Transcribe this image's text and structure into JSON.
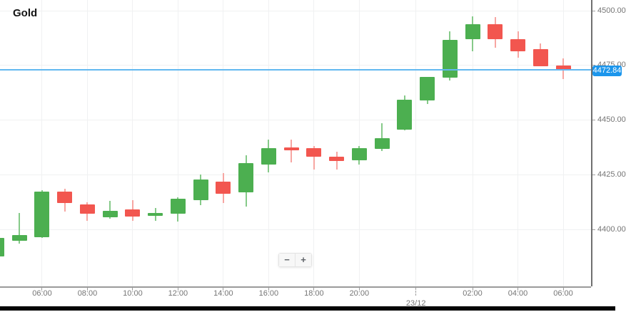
{
  "title": "Gold",
  "current_price": {
    "value": "4472.84"
  },
  "zoom_controls": {
    "minus": "−",
    "plus": "+"
  },
  "price_axis": {
    "labels": [
      "4500.00",
      "4475.00",
      "4450.00",
      "4425.00",
      "4400.00"
    ],
    "values": [
      4500,
      4475,
      4450,
      4425,
      4400
    ]
  },
  "time_axis": {
    "ticks": [
      {
        "label": "06:00",
        "candle": 2
      },
      {
        "label": "08:00",
        "candle": 4
      },
      {
        "label": "10:00",
        "candle": 6
      },
      {
        "label": "12:00",
        "candle": 8
      },
      {
        "label": "14:00",
        "candle": 10
      },
      {
        "label": "16:00",
        "candle": 12
      },
      {
        "label": "18:00",
        "candle": 14
      },
      {
        "label": "20:00",
        "candle": 16
      },
      {
        "label": "23/12",
        "candle": 18.5,
        "is_date": true
      },
      {
        "label": "02:00",
        "candle": 21
      },
      {
        "label": "04:00",
        "candle": 23
      },
      {
        "label": "06:00",
        "candle": 25
      }
    ]
  },
  "colors": {
    "up_body": "#4caf50",
    "up_wick": "#86ca89",
    "down_body": "#f2564f",
    "down_wick": "#f7a6a2",
    "grid": "#f0f1f2",
    "price_line": "#62b8f0",
    "price_badge": "#1c96ec",
    "axis_label": "#757575"
  },
  "chart_data": {
    "type": "candlestick",
    "title": "Gold",
    "ylabel": "",
    "xlabel": "",
    "ylim": [
      4375,
      4505
    ],
    "grid": true,
    "current_price_line": 4472.84,
    "series": [
      {
        "time": "04:00",
        "open": 4387.7,
        "high": 4396.2,
        "low": 4387.7,
        "close": 4396.2
      },
      {
        "time": "05:00",
        "open": 4394.9,
        "high": 4407.5,
        "low": 4393.6,
        "close": 4397.5
      },
      {
        "time": "06:00",
        "open": 4396.4,
        "high": 4418.0,
        "low": 4396.0,
        "close": 4417.3
      },
      {
        "time": "07:00",
        "open": 4417.3,
        "high": 4418.6,
        "low": 4408.2,
        "close": 4412.1
      },
      {
        "time": "08:00",
        "open": 4411.5,
        "high": 4412.4,
        "low": 4404.0,
        "close": 4407.2
      },
      {
        "time": "09:00",
        "open": 4405.5,
        "high": 4413.1,
        "low": 4405.0,
        "close": 4408.5
      },
      {
        "time": "10:00",
        "open": 4409.2,
        "high": 4413.5,
        "low": 4404.0,
        "close": 4405.9
      },
      {
        "time": "11:00",
        "open": 4406.2,
        "high": 4409.9,
        "low": 4404.0,
        "close": 4407.5
      },
      {
        "time": "12:00",
        "open": 4407.2,
        "high": 4414.7,
        "low": 4403.6,
        "close": 4414.0
      },
      {
        "time": "13:00",
        "open": 4413.2,
        "high": 4425.1,
        "low": 4411.1,
        "close": 4422.7
      },
      {
        "time": "14:00",
        "open": 4421.9,
        "high": 4425.8,
        "low": 4412.1,
        "close": 4416.4
      },
      {
        "time": "15:00",
        "open": 4417.0,
        "high": 4433.9,
        "low": 4410.5,
        "close": 4430.2
      },
      {
        "time": "16:00",
        "open": 4429.5,
        "high": 4441.1,
        "low": 4426.2,
        "close": 4437.1
      },
      {
        "time": "17:00",
        "open": 4437.4,
        "high": 4440.9,
        "low": 4430.6,
        "close": 4436.1
      },
      {
        "time": "18:00",
        "open": 4437.1,
        "high": 4438.1,
        "low": 4427.3,
        "close": 4433.3
      },
      {
        "time": "19:00",
        "open": 4433.3,
        "high": 4435.4,
        "low": 4427.3,
        "close": 4431.3
      },
      {
        "time": "20:00",
        "open": 4431.6,
        "high": 4438.1,
        "low": 4429.5,
        "close": 4437.1
      },
      {
        "time": "21:00",
        "open": 4436.9,
        "high": 4448.5,
        "low": 4435.9,
        "close": 4441.7
      },
      {
        "time": "22:00",
        "open": 4445.7,
        "high": 4461.3,
        "low": 4445.3,
        "close": 4459.3
      },
      {
        "time": "00:00",
        "open": 4458.8,
        "high": 4469.6,
        "low": 4457.4,
        "close": 4469.6
      },
      {
        "time": "01:00",
        "open": 4469.3,
        "high": 4490.6,
        "low": 4468.2,
        "close": 4486.7
      },
      {
        "time": "02:00",
        "open": 4487.0,
        "high": 4497.5,
        "low": 4481.5,
        "close": 4493.8
      },
      {
        "time": "03:00",
        "open": 4493.8,
        "high": 4497.1,
        "low": 4483.0,
        "close": 4487.0
      },
      {
        "time": "04:00",
        "open": 4487.0,
        "high": 4490.6,
        "low": 4478.6,
        "close": 4481.5
      },
      {
        "time": "05:00",
        "open": 4482.3,
        "high": 4485.1,
        "low": 4474.7,
        "close": 4474.7
      },
      {
        "time": "06:00",
        "open": 4475.0,
        "high": 4478.3,
        "low": 4468.8,
        "close": 4472.8
      }
    ]
  }
}
